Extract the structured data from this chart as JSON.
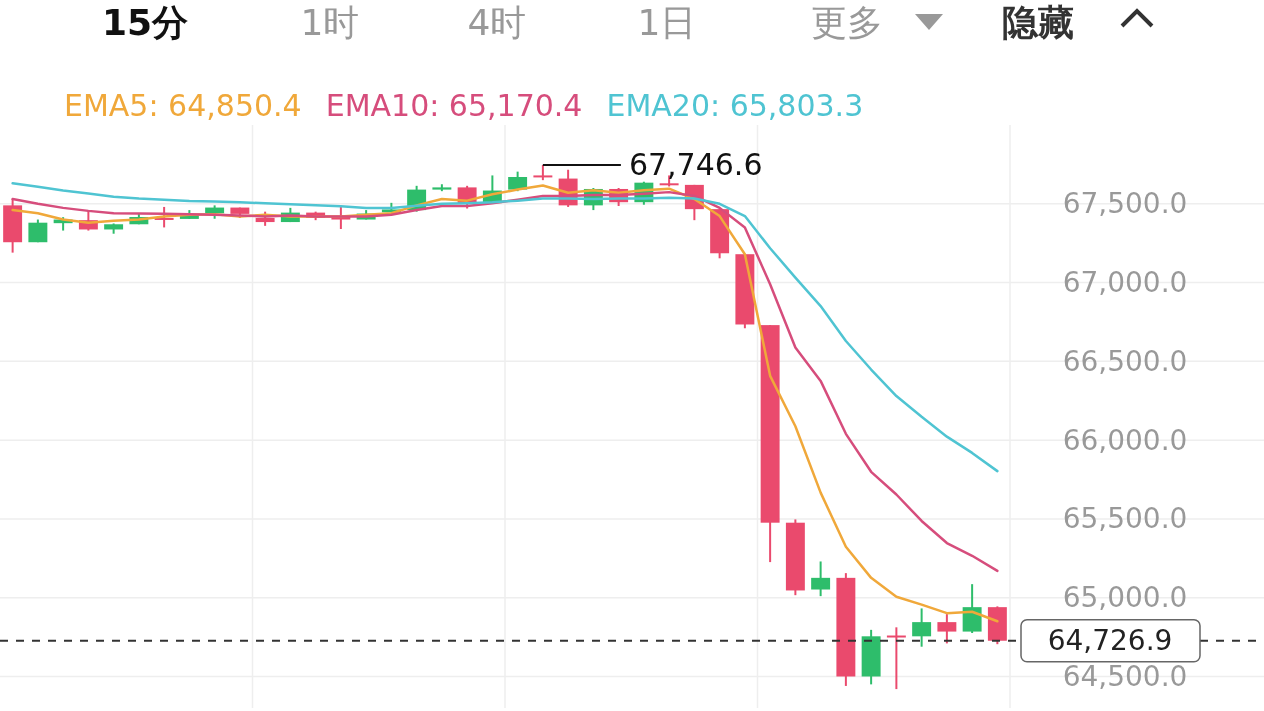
{
  "chart_data": {
    "type": "candlestick",
    "categories": [
      null,
      null,
      null,
      null,
      null,
      null,
      null,
      null,
      null,
      null,
      null,
      null,
      null,
      null,
      null,
      null,
      null,
      null,
      null,
      null,
      null,
      null,
      null,
      null,
      null,
      null,
      null,
      null,
      null,
      null,
      null,
      null,
      null,
      null,
      null,
      null,
      null,
      null,
      null,
      null
    ],
    "ohlc": [
      [
        67490,
        67530,
        67190,
        67256
      ],
      [
        67256,
        67400,
        67256,
        67380
      ],
      [
        67377,
        67415,
        67330,
        67400
      ],
      [
        67396,
        67454,
        67330,
        67337
      ],
      [
        67337,
        67375,
        67310,
        67370
      ],
      [
        67370,
        67440,
        67370,
        67416
      ],
      [
        67410,
        67480,
        67350,
        67402
      ],
      [
        67404,
        67460,
        67404,
        67430
      ],
      [
        67440,
        67490,
        67405,
        67476
      ],
      [
        67476,
        67476,
        67410,
        67436
      ],
      [
        67410,
        67450,
        67360,
        67384
      ],
      [
        67384,
        67474,
        67384,
        67444
      ],
      [
        67444,
        67450,
        67396,
        67410
      ],
      [
        67420,
        67480,
        67340,
        67400
      ],
      [
        67400,
        67460,
        67400,
        67438
      ],
      [
        67446,
        67506,
        67446,
        67464
      ],
      [
        67460,
        67614,
        67450,
        67590
      ],
      [
        67590,
        67624,
        67580,
        67604
      ],
      [
        67604,
        67614,
        67470,
        67504
      ],
      [
        67504,
        67680,
        67500,
        67584
      ],
      [
        67590,
        67704,
        67580,
        67670
      ],
      [
        67680,
        67746.6,
        67650,
        67670
      ],
      [
        67660,
        67716,
        67480,
        67490
      ],
      [
        67490,
        67600,
        67460,
        67594
      ],
      [
        67594,
        67600,
        67486,
        67510
      ],
      [
        67510,
        67640,
        67494,
        67634
      ],
      [
        67630,
        67680,
        67610,
        67620
      ],
      [
        67620,
        67620,
        67396,
        67466
      ],
      [
        67466,
        67466,
        67154,
        67186
      ],
      [
        67180,
        67180,
        66710,
        66734
      ],
      [
        66730,
        66730,
        65226,
        65476
      ],
      [
        65476,
        65497,
        65016,
        65046
      ],
      [
        65052,
        65230,
        65010,
        65126
      ],
      [
        65126,
        65156,
        64440,
        64500
      ],
      [
        64500,
        64796,
        64450,
        64755
      ],
      [
        64760,
        64812,
        64420,
        64750
      ],
      [
        64755,
        64932,
        64689,
        64845
      ],
      [
        64845,
        64896,
        64710,
        64785
      ],
      [
        64785,
        65086,
        64776,
        64940
      ],
      [
        64940,
        64945,
        64705,
        64726.9
      ]
    ],
    "colors": [
      "#ea4a6d",
      "#2ebd6b",
      "#2ebd6b",
      "#ea4a6d",
      "#2ebd6b",
      "#2ebd6b",
      "#ea4a6d",
      "#2ebd6b",
      "#2ebd6b",
      "#ea4a6d",
      "#ea4a6d",
      "#2ebd6b",
      "#ea4a6d",
      "#ea4a6d",
      "#2ebd6b",
      "#2ebd6b",
      "#2ebd6b",
      "#2ebd6b",
      "#ea4a6d",
      "#2ebd6b",
      "#2ebd6b",
      "#ea4a6d",
      "#ea4a6d",
      "#2ebd6b",
      "#ea4a6d",
      "#2ebd6b",
      "#ea4a6d",
      "#ea4a6d",
      "#ea4a6d",
      "#ea4a6d",
      "#ea4a6d",
      "#ea4a6d",
      "#2ebd6b",
      "#ea4a6d",
      "#2ebd6b",
      "#ea4a6d",
      "#2ebd6b",
      "#ea4a6d",
      "#2ebd6b",
      "#ea4a6d"
    ],
    "series": [
      {
        "name": "EMA5: 64,850.4",
        "type": "line",
        "color": "#f0a83a",
        "values": [
          67460,
          67440,
          67400,
          67380,
          67392,
          67400,
          67420,
          67431,
          67434,
          67420,
          67430,
          67420,
          67420,
          67420,
          67430,
          67440,
          67490,
          67530,
          67520,
          67560,
          67590,
          67616,
          67570,
          67586,
          67570,
          67586,
          67596,
          67530,
          67422,
          67180,
          66408,
          66088,
          65667,
          65323,
          65126,
          65006,
          64956,
          64902,
          64911,
          64850.4
        ]
      },
      {
        "name": "EMA10: 65,170.4",
        "type": "line",
        "color": "#d64d7c",
        "values": [
          67530,
          67500,
          67474,
          67455,
          67440,
          67438,
          67437,
          67434,
          67430,
          67426,
          67420,
          67426,
          67420,
          67420,
          67420,
          67430,
          67460,
          67486,
          67486,
          67504,
          67526,
          67550,
          67550,
          67556,
          67556,
          67564,
          67574,
          67550,
          67474,
          67350,
          66989,
          66588,
          66376,
          66040,
          65799,
          65655,
          65487,
          65347,
          65266,
          65170.4
        ]
      },
      {
        "name": "EMA20: 65,803.3",
        "type": "line",
        "color": "#4fc4d2",
        "values": [
          67630,
          67608,
          67584,
          67566,
          67545,
          67533,
          67526,
          67518,
          67514,
          67510,
          67503,
          67497,
          67490,
          67485,
          67473,
          67474,
          67488,
          67500,
          67504,
          67510,
          67520,
          67534,
          67534,
          67530,
          67534,
          67534,
          67538,
          67534,
          67500,
          67422,
          67218,
          67031,
          66851,
          66629,
          66448,
          66280,
          66148,
          66022,
          65919,
          65803.3
        ]
      }
    ],
    "ylim": [
      64300,
      68000
    ],
    "yticks": [
      {
        "value": 64500,
        "label": "64,500.0"
      },
      {
        "value": 65000,
        "label": "65,000.0"
      },
      {
        "value": 65500,
        "label": "65,500.0"
      },
      {
        "value": 66000,
        "label": "66,000.0"
      },
      {
        "value": 66500,
        "label": "66,500.0"
      },
      {
        "value": 67000,
        "label": "67,000.0"
      },
      {
        "value": 67500,
        "label": "67,500.0"
      }
    ],
    "grid": true,
    "legend": "top",
    "ref_lines": [
      {
        "axis": "y",
        "value": 64726.9,
        "label": "64,726.9",
        "color": "#333333",
        "line_style": "dashed"
      }
    ],
    "annotations": [
      "15分",
      "1时",
      "4时",
      "1日",
      "更多",
      "隐藏",
      "67,746.6"
    ]
  }
}
